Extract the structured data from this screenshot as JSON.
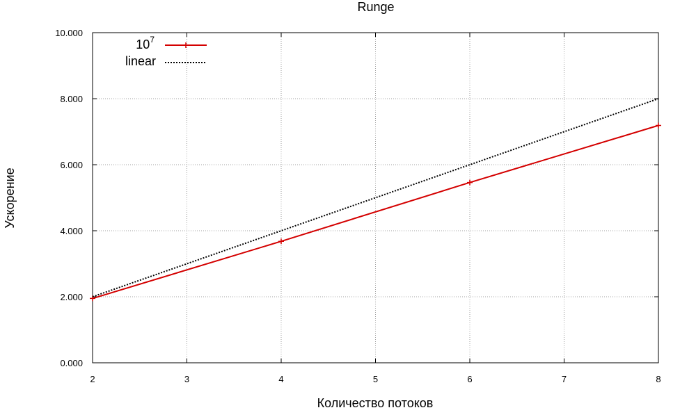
{
  "chart_data": {
    "type": "line",
    "title": "Runge",
    "xlabel": "Количество потоков",
    "ylabel": "Ускорение",
    "xlim": [
      2,
      8
    ],
    "ylim": [
      0,
      10
    ],
    "x_ticks": [
      "2",
      "3",
      "4",
      "5",
      "6",
      "7",
      "8"
    ],
    "y_ticks": [
      "0.000",
      "2.000",
      "4.000",
      "6.000",
      "8.000",
      "10.000"
    ],
    "grid": true,
    "legend_position": "top-left",
    "series": [
      {
        "name": "10",
        "name_superscript": "7",
        "color": "#d40000",
        "style": "solid",
        "markers": true,
        "x": [
          2,
          4,
          6,
          8
        ],
        "y": [
          1.95,
          3.68,
          5.46,
          7.19
        ]
      },
      {
        "name": "linear",
        "color": "#000000",
        "style": "dotted",
        "markers": false,
        "x": [
          2,
          8
        ],
        "y": [
          2,
          8
        ]
      }
    ]
  }
}
